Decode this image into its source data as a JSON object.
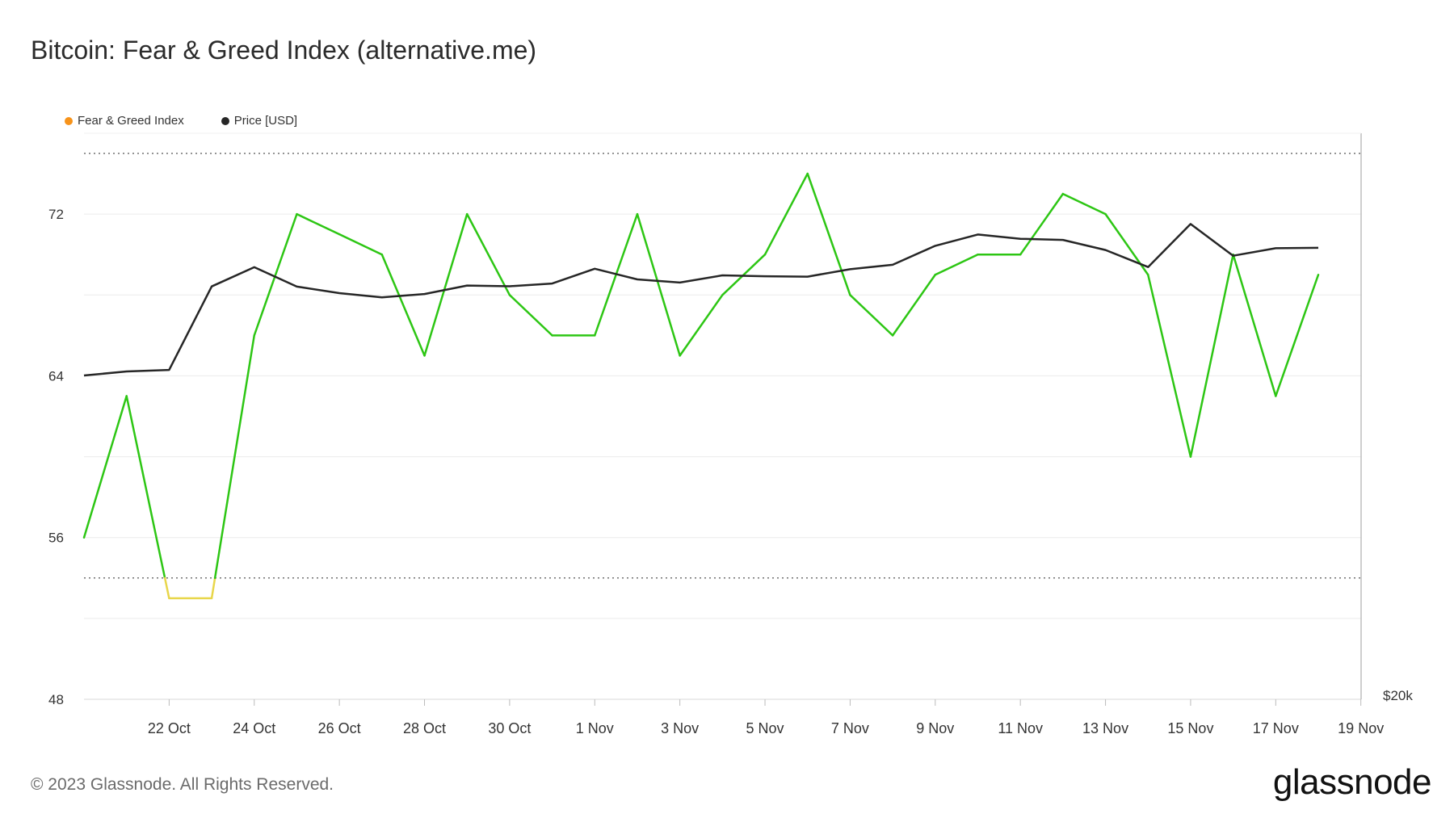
{
  "header": {
    "title": "Bitcoin: Fear & Greed Index (alternative.me)"
  },
  "legend": [
    {
      "label": "Fear & Greed Index",
      "color": "#f7931a"
    },
    {
      "label": "Price [USD]",
      "color": "#262626"
    }
  ],
  "footer": {
    "copyright": "© 2023 Glassnode. All Rights Reserved.",
    "brand": "glassnode"
  },
  "colors": {
    "greed": "#2dc614",
    "neutral": "#e8d64a",
    "price": "#262626",
    "grid": "#ececec"
  },
  "chart_data": {
    "type": "line",
    "title": "Bitcoin: Fear & Greed Index (alternative.me)",
    "y_left": {
      "ticks": [
        48,
        56,
        64,
        72
      ],
      "range": [
        48,
        76
      ]
    },
    "y_right": {
      "ticks": [
        "$20k"
      ]
    },
    "reference_lines": [
      75,
      54
    ],
    "x_ticks": [
      "22 Oct",
      "24 Oct",
      "26 Oct",
      "28 Oct",
      "30 Oct",
      "1 Nov",
      "3 Nov",
      "5 Nov",
      "7 Nov",
      "9 Nov",
      "11 Nov",
      "13 Nov",
      "15 Nov",
      "17 Nov",
      "19 Nov"
    ],
    "x_start": "2023-10-20",
    "series": [
      {
        "name": "Fear & Greed Index",
        "values": [
          56,
          63,
          53,
          53,
          66,
          72,
          71,
          70,
          65,
          72,
          68,
          66,
          66,
          72,
          65,
          68,
          70,
          74,
          68,
          66,
          69,
          70,
          70,
          73,
          72,
          69,
          60,
          70,
          63,
          69
        ]
      },
      {
        "name": "Price [USD]",
        "values": [
          29680,
          29900,
          29980,
          34500,
          35540,
          34490,
          34140,
          33910,
          34090,
          34550,
          34510,
          34660,
          35460,
          34880,
          34710,
          35100,
          35050,
          35030,
          35430,
          35670,
          36700,
          37310,
          37080,
          37020,
          36470,
          35550,
          37880,
          36160,
          36570,
          36590
        ]
      }
    ]
  }
}
